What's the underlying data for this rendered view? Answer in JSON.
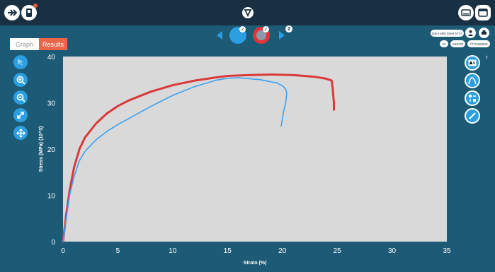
{
  "tabs": {
    "graph": "Graph",
    "results": "Results"
  },
  "badge_count": "2",
  "info_pills": [
    "5mm Mild Steel ST37",
    "#1",
    "AEZON",
    "777/10/MMS"
  ],
  "chart_data": {
    "type": "line",
    "xlabel": "Strain (%)",
    "ylabel": "Stress (MPa) (10^3)",
    "xlim": [
      0,
      35
    ],
    "ylim": [
      0,
      40
    ],
    "xticks": [
      "0",
      "5",
      "10",
      "15",
      "20",
      "25",
      "30",
      "35"
    ],
    "yticks": [
      "0",
      "10",
      "20",
      "30",
      "40"
    ],
    "grid": false,
    "series": [
      {
        "color": "#d9393b",
        "x": [
          0,
          0.3,
          0.6,
          1,
          1.5,
          2,
          3,
          4,
          5,
          6,
          8,
          10,
          12,
          14,
          15,
          17,
          19,
          21,
          22,
          23,
          24,
          24.5,
          24.6,
          24.7,
          24.7
        ],
        "y": [
          0,
          6,
          11,
          16,
          20,
          22.5,
          25.5,
          27.7,
          29.3,
          30.5,
          32.4,
          33.8,
          34.8,
          35.5,
          35.8,
          36,
          36.1,
          36,
          35.8,
          35.6,
          35.2,
          34.8,
          33,
          30,
          28.5
        ]
      },
      {
        "color": "#3aa1f2",
        "x": [
          0,
          0.3,
          0.6,
          1,
          1.5,
          2,
          3,
          4,
          5,
          6,
          8,
          10,
          12,
          14,
          15,
          16,
          17,
          18,
          19,
          19.5,
          20,
          20.3,
          20.4,
          20.3,
          20.1,
          20,
          19.9
        ],
        "y": [
          0,
          5,
          10,
          14,
          17.5,
          19.5,
          22,
          23.8,
          25.3,
          26.6,
          29.2,
          31.6,
          33.5,
          34.9,
          35.3,
          35.4,
          35.2,
          35,
          34.5,
          34.3,
          33.7,
          33,
          32,
          30,
          28,
          26.5,
          25
        ]
      }
    ]
  }
}
